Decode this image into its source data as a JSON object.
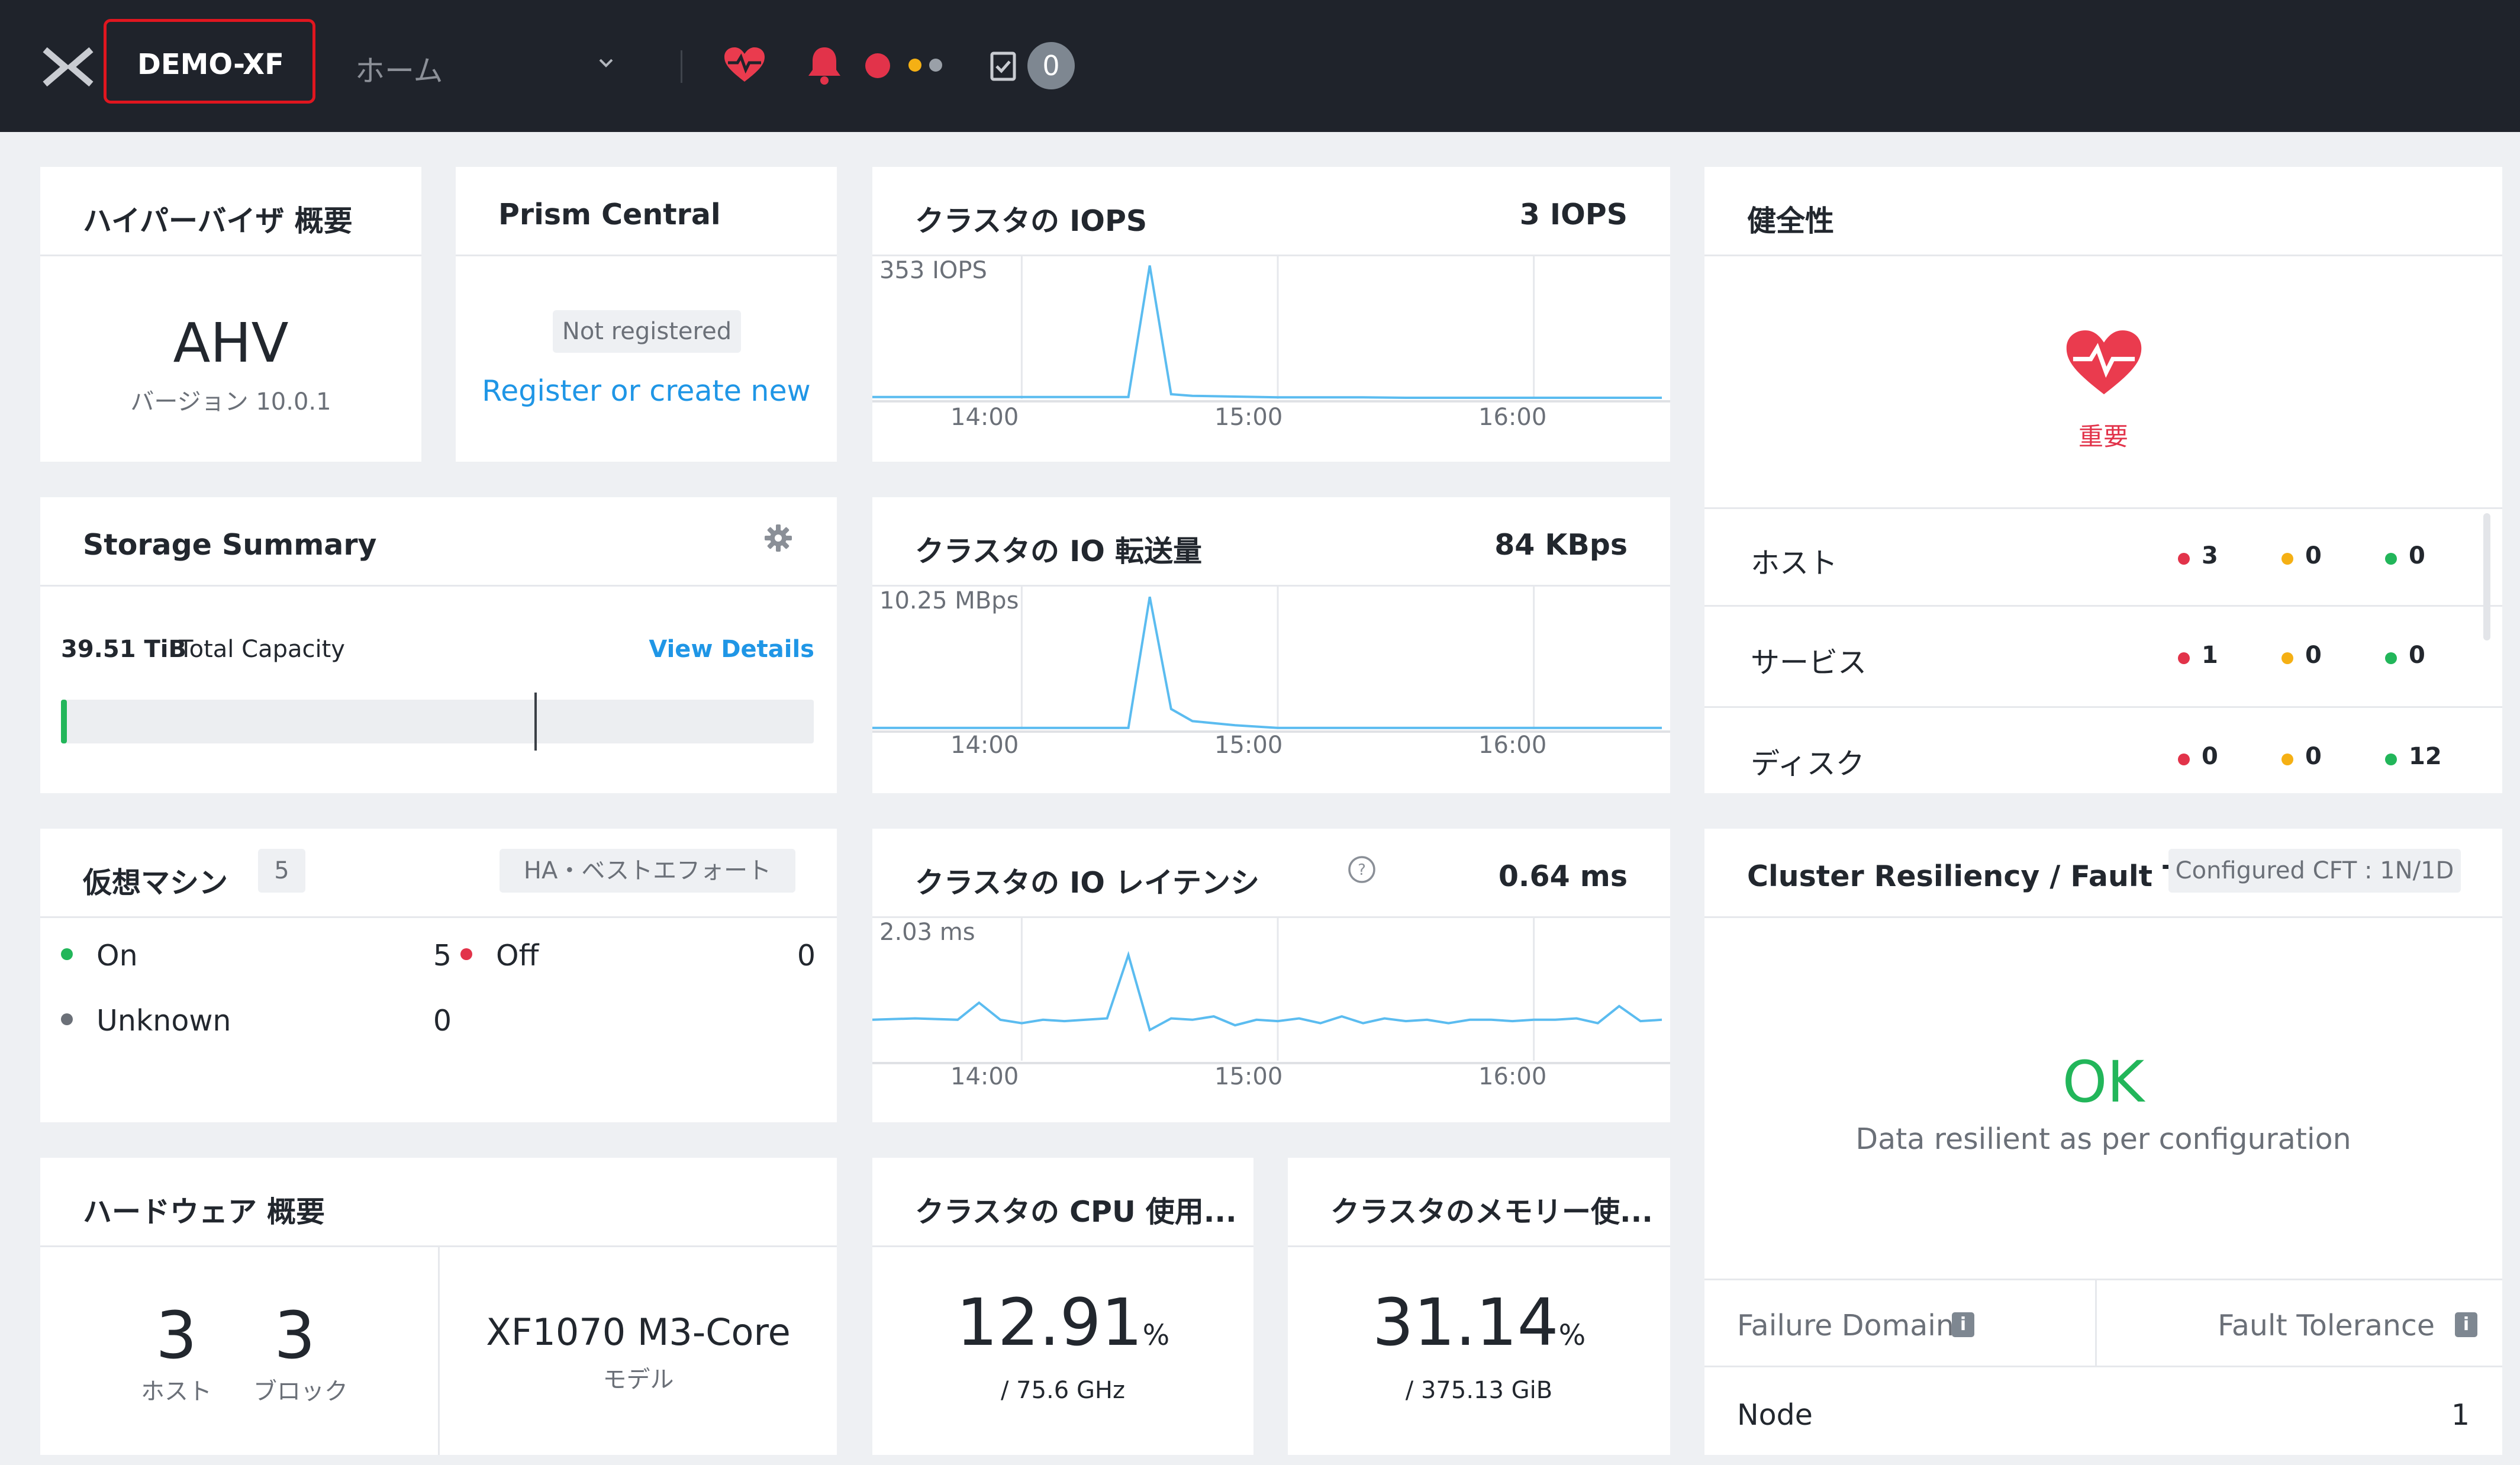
{
  "topbar": {
    "cluster_name": "DEMO-XF",
    "nav_label": "ホーム",
    "tasks_count": "0"
  },
  "colors": {
    "accent": "#1f96e6",
    "critical": "#e2334a",
    "warning": "#f5b014",
    "ok": "#22b65a",
    "brand_red": "#ea3b4e",
    "topbar": "#1f232b"
  },
  "hypervisor": {
    "title": "ハイパーバイザ 概要",
    "name": "AHV",
    "version": "バージョン 10.0.1"
  },
  "prism": {
    "title": "Prism Central",
    "status": "Not registered",
    "link": "Register or create new"
  },
  "iops": {
    "title": "クラスタの IOPS",
    "value": "3 IOPS",
    "peak": "353 IOPS",
    "ticks": [
      "14:00",
      "15:00",
      "16:00"
    ]
  },
  "io_throughput": {
    "title": "クラスタの IO 転送量",
    "value": "84 KBps",
    "peak": "10.25 MBps",
    "ticks": [
      "14:00",
      "15:00",
      "16:00"
    ]
  },
  "latency": {
    "title": "クラスタの IO レイテンシ",
    "value": "0.64 ms",
    "peak": "2.03 ms",
    "ticks": [
      "14:00",
      "15:00",
      "16:00"
    ]
  },
  "health": {
    "title": "健全性",
    "status": "重要",
    "rows": [
      {
        "label": "ホスト",
        "critical": "3",
        "warning": "0",
        "ok": "0"
      },
      {
        "label": "サービス",
        "critical": "1",
        "warning": "0",
        "ok": "0"
      },
      {
        "label": "ディスク",
        "critical": "0",
        "warning": "0",
        "ok": "12"
      }
    ]
  },
  "storage": {
    "title": "Storage Summary",
    "capacity": "39.51 TiB",
    "capacity_label": "Total Capacity",
    "details_link": "View Details",
    "used_fraction": 0.005
  },
  "vms": {
    "title": "仮想マシン",
    "count": "5",
    "ha": "HA・ベストエフォート",
    "on_label": "On",
    "on": "5",
    "off_label": "Off",
    "off": "0",
    "unknown_label": "Unknown",
    "unknown": "0"
  },
  "resiliency": {
    "title": "Cluster Resiliency / Fault T...",
    "cft": "Configured CFT : 1N/1D",
    "status": "OK",
    "message": "Data resilient as per configuration",
    "fd_label": "Failure Domain",
    "ft_label": "Fault Tolerance",
    "fd_value": "Node",
    "ft_value": "1"
  },
  "hardware": {
    "title": "ハードウェア 概要",
    "hosts": "3",
    "hosts_label": "ホスト",
    "blocks": "3",
    "blocks_label": "ブロック",
    "model": "XF1070 M3-Core",
    "model_label": "モデル"
  },
  "cpu": {
    "title": "クラスタの CPU 使用...",
    "value": "12.91",
    "unit": "%",
    "total": "/ 75.6 GHz"
  },
  "memory": {
    "title": "クラスタのメモリー使...",
    "value": "31.14",
    "unit": "%",
    "total": "/ 375.13 GiB"
  },
  "chart_data": [
    {
      "type": "line",
      "title": "クラスタの IOPS",
      "xlabel": "",
      "ylabel": "",
      "x_ticks": [
        "14:00",
        "15:00",
        "16:00"
      ],
      "ylim": [
        0,
        353
      ],
      "y_top_label": "353 IOPS",
      "x": [
        "13:25",
        "13:35",
        "13:45",
        "13:55",
        "14:05",
        "14:15",
        "14:25",
        "14:30",
        "14:35",
        "14:40",
        "14:50",
        "15:00",
        "15:10",
        "15:20",
        "15:30",
        "15:40",
        "15:50",
        "16:00",
        "16:10",
        "16:20",
        "16:30"
      ],
      "values": [
        5,
        5,
        5,
        5,
        5,
        5,
        5,
        340,
        12,
        8,
        6,
        4,
        4,
        4,
        3,
        3,
        3,
        3,
        3,
        3,
        3
      ]
    },
    {
      "type": "line",
      "title": "クラスタの IO 転送量",
      "xlabel": "",
      "ylabel": "",
      "x_ticks": [
        "14:00",
        "15:00",
        "16:00"
      ],
      "ylim": [
        0,
        10.25
      ],
      "y_top_label": "10.25 MBps",
      "x": [
        "13:25",
        "13:35",
        "13:45",
        "13:55",
        "14:05",
        "14:15",
        "14:25",
        "14:30",
        "14:35",
        "14:40",
        "14:50",
        "15:00",
        "15:10",
        "15:20",
        "15:30",
        "15:40",
        "15:50",
        "16:00",
        "16:10",
        "16:20",
        "16:30"
      ],
      "values": [
        0.1,
        0.1,
        0.1,
        0.1,
        0.1,
        0.1,
        0.1,
        9.8,
        1.5,
        0.6,
        0.3,
        0.1,
        0.1,
        0.1,
        0.1,
        0.1,
        0.1,
        0.1,
        0.1,
        0.1,
        0.1
      ]
    },
    {
      "type": "line",
      "title": "クラスタの IO レイテンシ",
      "xlabel": "",
      "ylabel": "",
      "x_ticks": [
        "14:00",
        "15:00",
        "16:00"
      ],
      "ylim": [
        0,
        2.03
      ],
      "y_top_label": "2.03 ms",
      "x": [
        "13:25",
        "13:35",
        "13:45",
        "13:50",
        "13:55",
        "14:00",
        "14:05",
        "14:10",
        "14:15",
        "14:20",
        "14:25",
        "14:30",
        "14:35",
        "14:40",
        "14:45",
        "14:50",
        "14:55",
        "15:00",
        "15:05",
        "15:10",
        "15:15",
        "15:20",
        "15:25",
        "15:30",
        "15:35",
        "15:40",
        "15:45",
        "15:50",
        "15:55",
        "16:00",
        "16:05",
        "16:10",
        "16:15",
        "16:20",
        "16:25",
        "16:30"
      ],
      "values": [
        0.6,
        0.62,
        0.6,
        0.85,
        0.6,
        0.55,
        0.6,
        0.58,
        0.6,
        0.62,
        1.55,
        0.45,
        0.62,
        0.6,
        0.65,
        0.52,
        0.6,
        0.58,
        0.62,
        0.55,
        0.65,
        0.55,
        0.62,
        0.58,
        0.6,
        0.55,
        0.6,
        0.6,
        0.58,
        0.6,
        0.6,
        0.62,
        0.55,
        0.8,
        0.58,
        0.6
      ]
    }
  ]
}
